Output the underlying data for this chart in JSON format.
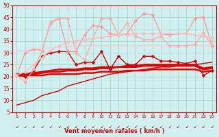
{
  "title": "",
  "xlabel": "Vent moyen/en rafales ( km/h )",
  "xlim": [
    -0.5,
    23.5
  ],
  "ylim": [
    5,
    50
  ],
  "yticks": [
    5,
    10,
    15,
    20,
    25,
    30,
    35,
    40,
    45,
    50
  ],
  "xticks": [
    0,
    1,
    2,
    3,
    4,
    5,
    6,
    7,
    8,
    9,
    10,
    11,
    12,
    13,
    14,
    15,
    16,
    17,
    18,
    19,
    20,
    21,
    22,
    23
  ],
  "bg_color": "#cff0ee",
  "grid_color": "#a8d8d5",
  "series": [
    {
      "x": [
        0,
        1,
        2,
        3,
        4,
        5,
        6,
        7,
        8,
        9,
        10,
        11,
        12,
        13,
        14,
        15,
        16,
        17,
        18,
        19,
        20,
        21,
        22,
        23
      ],
      "y": [
        8,
        9,
        10,
        12,
        13,
        14,
        16,
        17,
        18,
        19,
        20,
        21,
        21.5,
        22,
        22.5,
        23,
        23.5,
        24,
        24,
        24.5,
        25,
        25,
        25.5,
        26
      ],
      "color": "#cc0000",
      "lw": 1.0,
      "marker": null,
      "ms": 0
    },
    {
      "x": [
        0,
        1,
        2,
        3,
        4,
        5,
        6,
        7,
        8,
        9,
        10,
        11,
        12,
        13,
        14,
        15,
        16,
        17,
        18,
        19,
        20,
        21,
        22,
        23
      ],
      "y": [
        20.5,
        20.5,
        20.5,
        20.5,
        21,
        21,
        21,
        21,
        21.5,
        21.5,
        22,
        22,
        22,
        22.5,
        22.5,
        22.5,
        23,
        23,
        23,
        23,
        23,
        23,
        22,
        22.5
      ],
      "color": "#dd0000",
      "lw": 1.8,
      "marker": null,
      "ms": 0
    },
    {
      "x": [
        0,
        1,
        2,
        3,
        4,
        5,
        6,
        7,
        8,
        9,
        10,
        11,
        12,
        13,
        14,
        15,
        16,
        17,
        18,
        19,
        20,
        21,
        22,
        23
      ],
      "y": [
        20.5,
        20.5,
        21,
        21.5,
        22,
        22,
        22.5,
        22.5,
        23,
        23,
        23.5,
        23.5,
        24,
        24,
        24,
        24.5,
        24.5,
        24.5,
        24.5,
        24.5,
        24.5,
        24.5,
        23,
        23.5
      ],
      "color": "#dd0000",
      "lw": 1.8,
      "marker": null,
      "ms": 0
    },
    {
      "x": [
        0,
        1,
        2,
        3,
        4,
        5,
        6,
        7,
        8,
        9,
        10,
        11,
        12,
        13,
        14,
        15,
        16,
        17,
        18,
        19,
        20,
        21,
        22,
        23
      ],
      "y": [
        21,
        21,
        21.5,
        22,
        22.5,
        23,
        23,
        23,
        23.5,
        23.5,
        24,
        24,
        24,
        24.5,
        24.5,
        25,
        25,
        25,
        25,
        25,
        25,
        25,
        23.5,
        24
      ],
      "color": "#dd0000",
      "lw": 1.8,
      "marker": null,
      "ms": 0
    },
    {
      "x": [
        0,
        1,
        2,
        3,
        4,
        5,
        6,
        7,
        8,
        9,
        10,
        11,
        12,
        13,
        14,
        15,
        16,
        17,
        18,
        19,
        20,
        21,
        22,
        23
      ],
      "y": [
        20.5,
        20,
        22.5,
        28.5,
        30,
        30.5,
        30.5,
        25,
        26,
        26,
        30.5,
        23,
        28.5,
        25,
        25,
        28.5,
        28.5,
        26.5,
        26.5,
        26,
        25.5,
        26.5,
        20.5,
        22.5
      ],
      "color": "#cc0000",
      "lw": 1.0,
      "marker": "D",
      "ms": 2.5
    },
    {
      "x": [
        0,
        1,
        2,
        3,
        4,
        5,
        6,
        7,
        8,
        9,
        10,
        11,
        12,
        13,
        14,
        15,
        16,
        17,
        18,
        19,
        20,
        21,
        22,
        23
      ],
      "y": [
        20.5,
        30,
        31.5,
        31,
        42.5,
        44.5,
        30.5,
        30.5,
        37.5,
        41.5,
        41,
        38,
        37.5,
        38,
        43.5,
        46.5,
        46,
        38,
        37.5,
        38,
        38,
        44.5,
        45,
        33
      ],
      "color": "#ff9999",
      "lw": 1.0,
      "marker": "D",
      "ms": 2.5
    },
    {
      "x": [
        0,
        1,
        2,
        3,
        4,
        5,
        6,
        7,
        8,
        9,
        10,
        11,
        12,
        13,
        14,
        15,
        16,
        17,
        18,
        19,
        20,
        21,
        22,
        23
      ],
      "y": [
        20.5,
        17.5,
        23,
        31,
        43,
        44.5,
        44.5,
        30,
        27,
        36,
        44.5,
        44.5,
        37.5,
        42.5,
        37,
        35.5,
        35.5,
        37,
        33,
        33,
        33,
        33.5,
        38.5,
        33
      ],
      "color": "#ffaaaa",
      "lw": 1.0,
      "marker": "D",
      "ms": 2.5
    },
    {
      "x": [
        0,
        1,
        2,
        3,
        4,
        5,
        6,
        7,
        8,
        9,
        10,
        11,
        12,
        13,
        14,
        15,
        16,
        17,
        18,
        19,
        20,
        21,
        22,
        23
      ],
      "y": [
        30.5,
        31,
        31.5,
        32,
        32,
        32.5,
        32.5,
        33,
        33,
        33,
        33,
        33,
        33,
        33,
        33,
        33,
        33,
        33,
        33,
        33,
        33,
        33,
        33,
        33
      ],
      "color": "#ffcccc",
      "lw": 1.0,
      "marker": null,
      "ms": 0
    },
    {
      "x": [
        0,
        1,
        2,
        3,
        4,
        5,
        6,
        7,
        8,
        9,
        10,
        11,
        12,
        13,
        14,
        15,
        16,
        17,
        18,
        19,
        20,
        21,
        22,
        23
      ],
      "y": [
        20.5,
        22,
        25,
        28,
        31,
        33,
        34.5,
        35,
        35.5,
        36,
        36.5,
        37,
        37.5,
        37.5,
        38,
        38,
        38,
        38,
        38,
        38,
        38,
        37.5,
        37,
        36.5
      ],
      "color": "#ffbbbb",
      "lw": 1.0,
      "marker": "D",
      "ms": 2.5
    }
  ],
  "tick_color": "#cc0000",
  "label_color": "#cc0000",
  "axis_color": "#cc0000"
}
